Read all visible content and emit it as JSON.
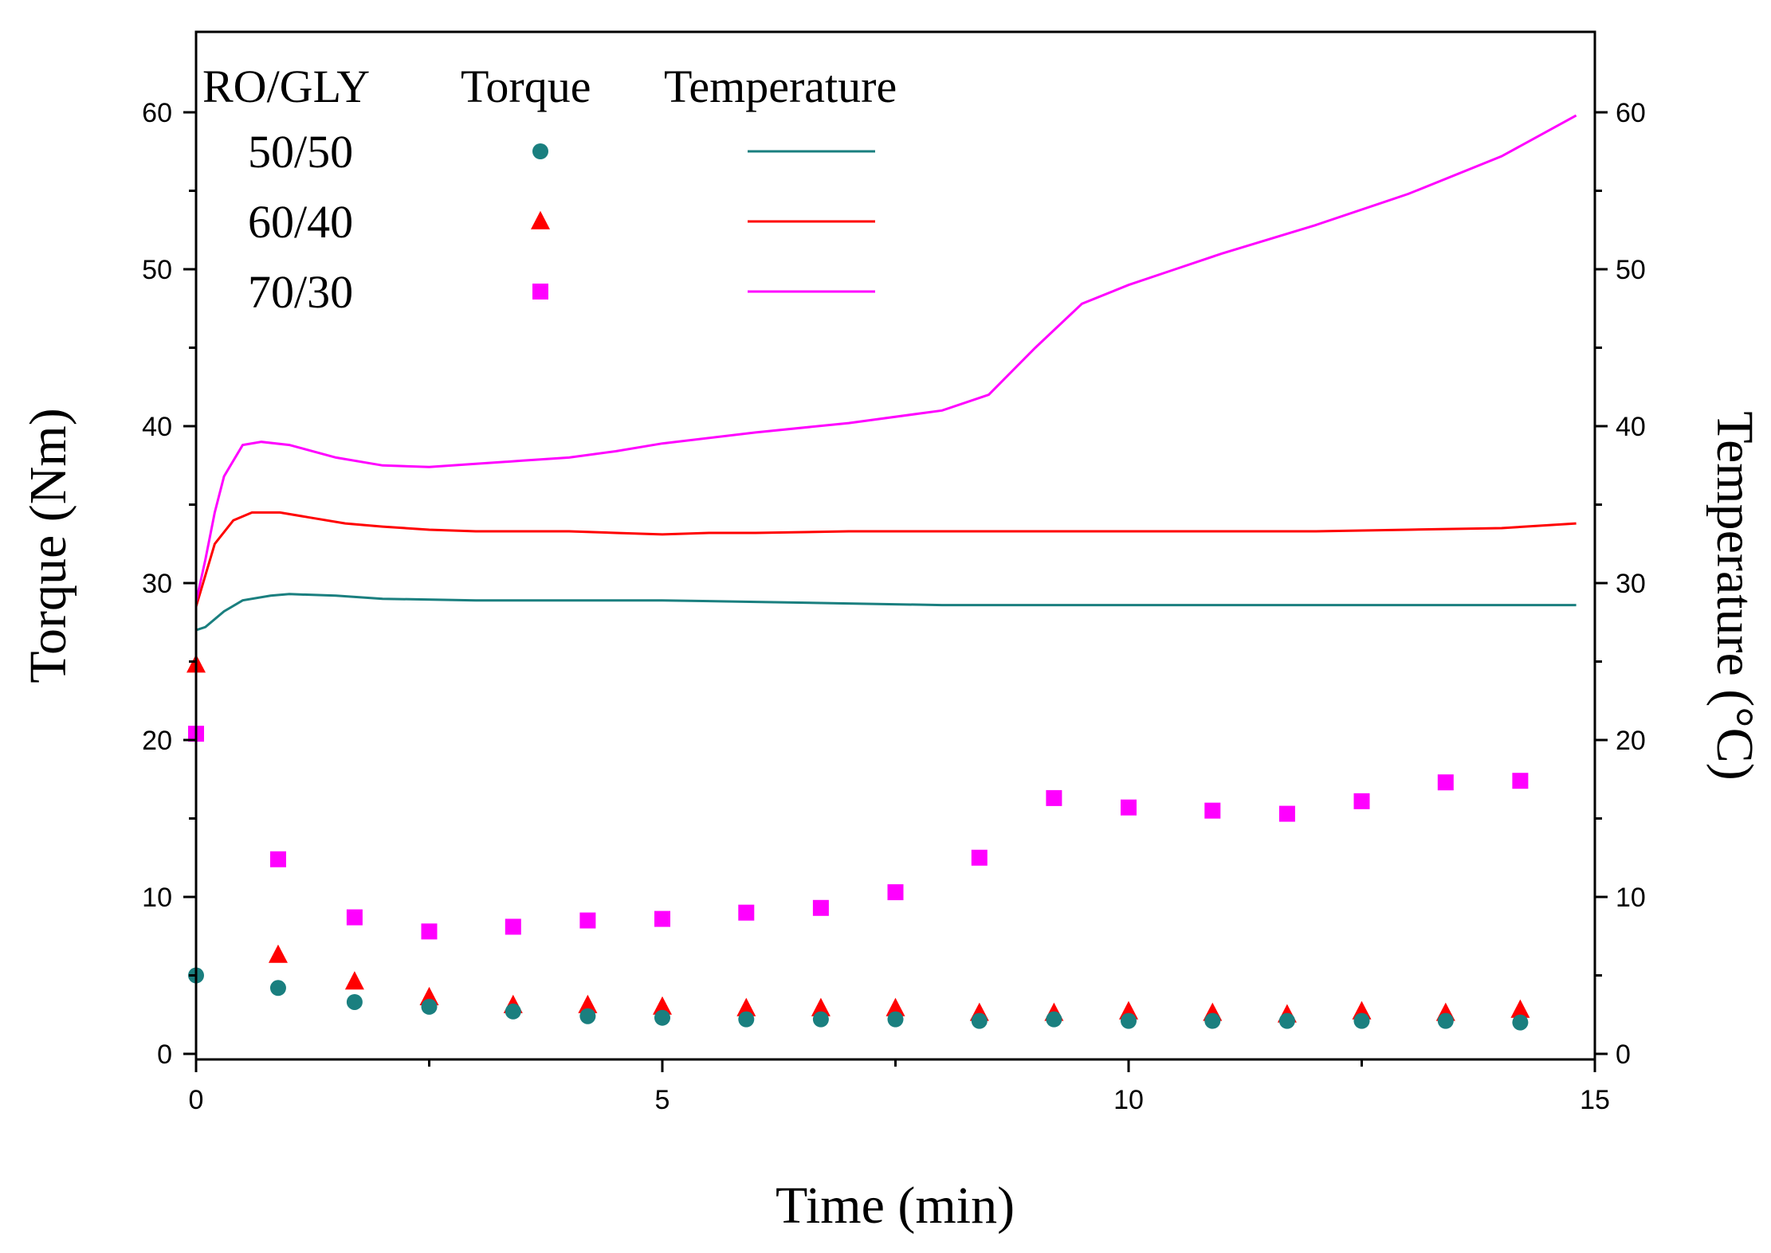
{
  "chart_data": {
    "type": "scatter",
    "title": "",
    "xlabel": "Time (min)",
    "ylabel": "Torque (Nm)",
    "y2label": "Temperature (°C)",
    "xlim": [
      0,
      15
    ],
    "ylim": [
      0,
      65
    ],
    "y2lim": [
      0,
      65
    ],
    "xticks": [
      "0",
      "5",
      "10",
      "15"
    ],
    "yticks": [
      "0",
      "10",
      "20",
      "30",
      "40",
      "50",
      "60"
    ],
    "y2ticks": [
      "0",
      "10",
      "20",
      "30",
      "40",
      "50",
      "60"
    ],
    "grid": false,
    "legend": {
      "position": "top-left",
      "header": [
        "RO/GLY",
        "Torque",
        "Temperature"
      ],
      "entries": [
        "50/50",
        "60/40",
        "70/30"
      ]
    },
    "series": [
      {
        "name": "50/50",
        "color": "#1a7f7f",
        "marker": "circle",
        "torque_x": [
          0,
          0.88,
          1.7,
          2.5,
          3.4,
          4.2,
          5.0,
          5.9,
          6.7,
          7.5,
          8.4,
          9.2,
          10.0,
          10.9,
          11.7,
          12.5,
          13.4,
          14.2
        ],
        "torque_y": [
          5.0,
          4.2,
          3.3,
          3.0,
          2.7,
          2.4,
          2.3,
          2.2,
          2.2,
          2.2,
          2.1,
          2.2,
          2.1,
          2.1,
          2.1,
          2.1,
          2.1,
          2.0
        ],
        "temperature_x": [
          0,
          0.1,
          0.3,
          0.5,
          0.8,
          1.0,
          1.5,
          2.0,
          3.0,
          4.0,
          5.0,
          6.0,
          7.0,
          8.0,
          9.0,
          10.0,
          11.0,
          12.0,
          13.0,
          14.0,
          14.8
        ],
        "temperature_y": [
          27.0,
          27.2,
          28.2,
          28.9,
          29.2,
          29.3,
          29.2,
          29.0,
          28.9,
          28.9,
          28.9,
          28.8,
          28.7,
          28.6,
          28.6,
          28.6,
          28.6,
          28.6,
          28.6,
          28.6,
          28.6
        ]
      },
      {
        "name": "60/40",
        "color": "#ff0000",
        "marker": "triangle",
        "torque_x": [
          0,
          0.88,
          1.7,
          2.5,
          3.4,
          4.2,
          5.0,
          5.9,
          6.7,
          7.5,
          8.4,
          9.2,
          10.0,
          10.9,
          11.7,
          12.5,
          13.4,
          14.2
        ],
        "torque_y": [
          24.8,
          6.3,
          4.6,
          3.6,
          3.1,
          3.1,
          3.0,
          2.9,
          2.9,
          2.9,
          2.6,
          2.6,
          2.7,
          2.6,
          2.5,
          2.7,
          2.6,
          2.8
        ],
        "temperature_x": [
          0,
          0.1,
          0.2,
          0.4,
          0.6,
          0.9,
          1.2,
          1.6,
          2.0,
          2.5,
          3.0,
          4.0,
          4.5,
          5.0,
          5.5,
          6.0,
          7.0,
          8.0,
          9.0,
          10.0,
          11.0,
          12.0,
          13.0,
          14.0,
          14.8
        ],
        "temperature_y": [
          28.5,
          30.5,
          32.5,
          34.0,
          34.5,
          34.5,
          34.2,
          33.8,
          33.6,
          33.4,
          33.3,
          33.3,
          33.2,
          33.1,
          33.2,
          33.2,
          33.3,
          33.3,
          33.3,
          33.3,
          33.3,
          33.3,
          33.4,
          33.5,
          33.8
        ]
      },
      {
        "name": "70/30",
        "color": "#ff00ff",
        "marker": "square",
        "torque_x": [
          0,
          0.88,
          1.7,
          2.5,
          3.4,
          4.2,
          5.0,
          5.9,
          6.7,
          7.5,
          8.4,
          9.2,
          10.0,
          10.9,
          11.7,
          12.5,
          13.4,
          14.2
        ],
        "torque_y": [
          20.4,
          12.4,
          8.7,
          7.8,
          8.1,
          8.5,
          8.6,
          9.0,
          9.3,
          10.3,
          12.5,
          16.3,
          15.7,
          15.5,
          15.3,
          16.1,
          17.3,
          17.4
        ],
        "temperature_x": [
          0,
          0.1,
          0.2,
          0.3,
          0.5,
          0.7,
          1.0,
          1.5,
          2.0,
          2.5,
          3.0,
          3.5,
          4.0,
          4.5,
          5.0,
          6.0,
          7.0,
          8.0,
          8.5,
          9.0,
          9.5,
          10.0,
          10.5,
          11.0,
          12.0,
          13.0,
          14.0,
          14.8
        ],
        "temperature_y": [
          28.8,
          31.5,
          34.5,
          36.8,
          38.8,
          39.0,
          38.8,
          38.0,
          37.5,
          37.4,
          37.6,
          37.8,
          38.0,
          38.4,
          38.9,
          39.6,
          40.2,
          41.0,
          42.0,
          45.0,
          47.8,
          49.0,
          50.0,
          51.0,
          52.8,
          54.8,
          57.2,
          59.8
        ]
      }
    ]
  }
}
